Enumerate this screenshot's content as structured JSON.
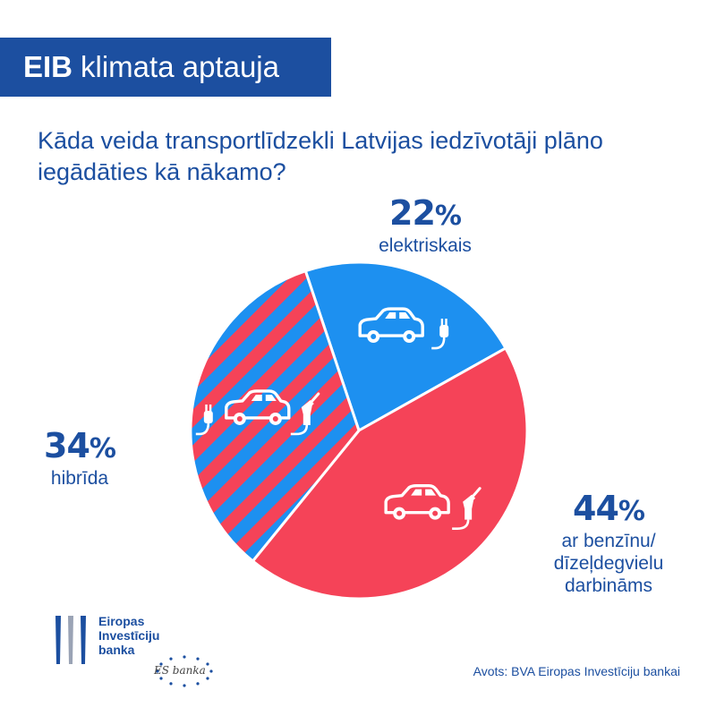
{
  "header": {
    "brand": "EIB",
    "title": "klimata aptauja",
    "brand_color": "#1c4fa0"
  },
  "question": "Kāda veida transportlīdzekli Latvijas iedzīvotāji plāno iegādāties kā nākamo?",
  "chart_data": {
    "type": "pie",
    "title": "Kāda veida transportlīdzekli Latvijas iedzīvotāji plāno iegādāties kā nākamo?",
    "slices": [
      {
        "label": "elektriskais",
        "value": 22,
        "display": "22",
        "color": "#1d90f0",
        "pattern": "solid",
        "icon": "electric-car-icon"
      },
      {
        "label_lines": [
          "ar benzīnu/",
          "dīzeļdegvielu",
          "darbināms"
        ],
        "label": "ar benzīnu/ dīzeļdegvielu darbināms",
        "value": 44,
        "display": "44",
        "color": "#f54358",
        "pattern": "solid",
        "icon": "fuel-car-icon"
      },
      {
        "label": "hibrīda",
        "value": 34,
        "display": "34",
        "color": "#f54358",
        "stripe_color": "#1d90f0",
        "pattern": "diagonal-stripes",
        "icon": "hybrid-car-icon"
      }
    ],
    "percent_sign": "%"
  },
  "logo": {
    "lines": [
      "Eiropas",
      "Investīciju",
      "banka"
    ],
    "es_banka": "ES banka"
  },
  "source": "Avots: BVA Eiropas Investīciju bankai"
}
